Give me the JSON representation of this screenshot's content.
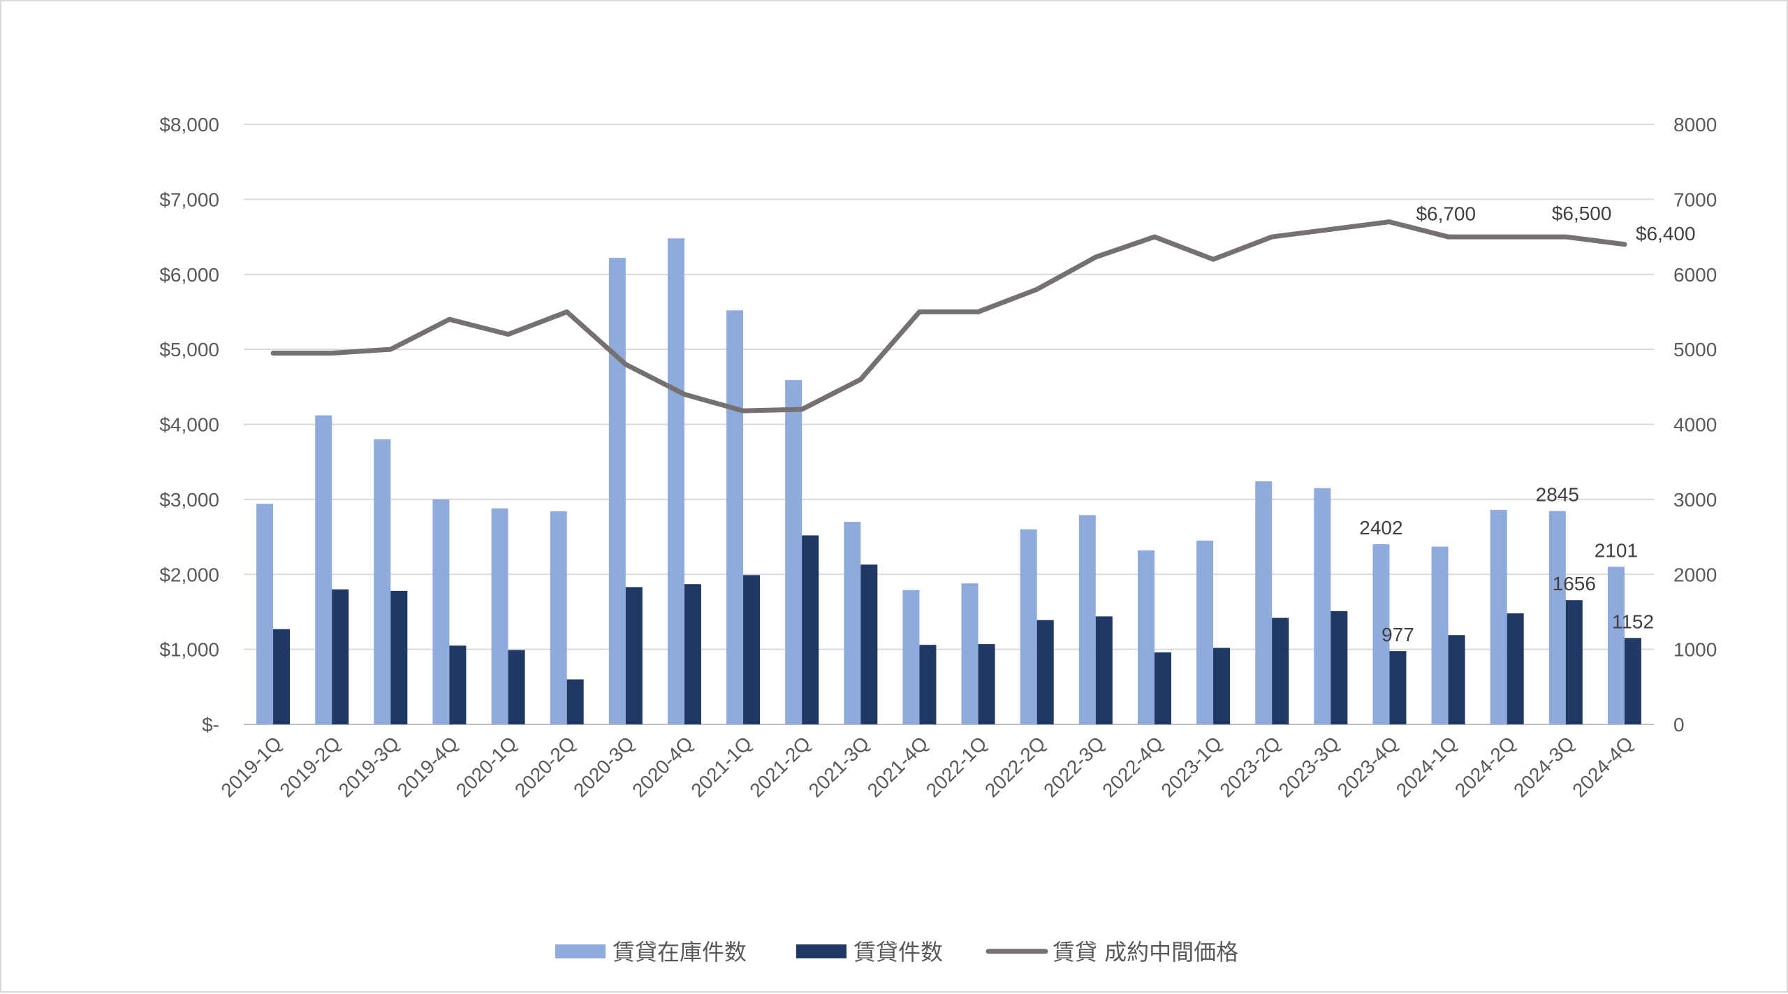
{
  "chart_data": {
    "type": "bar",
    "categories": [
      "2019-1Q",
      "2019-2Q",
      "2019-3Q",
      "2019-4Q",
      "2020-1Q",
      "2020-2Q",
      "2020-3Q",
      "2020-4Q",
      "2021-1Q",
      "2021-2Q",
      "2021-3Q",
      "2021-4Q",
      "2022-1Q",
      "2022-2Q",
      "2022-3Q",
      "2022-4Q",
      "2023-1Q",
      "2023-2Q",
      "2023-3Q",
      "2023-4Q",
      "2024-1Q",
      "2024-2Q",
      "2024-3Q",
      "2024-4Q"
    ],
    "series": [
      {
        "name": "賃貸在庫件数",
        "kind": "bar",
        "axis": "right",
        "color": "#8faadc",
        "values": [
          2940,
          4120,
          3800,
          3000,
          2880,
          2840,
          6220,
          6480,
          5520,
          4590,
          2700,
          1790,
          1880,
          2600,
          2790,
          2320,
          2450,
          3240,
          3150,
          2402,
          2370,
          2860,
          2845,
          2101
        ],
        "labels": {
          "19": "2402",
          "22": "2845",
          "23": "2101"
        }
      },
      {
        "name": "賃貸件数",
        "kind": "bar",
        "axis": "right",
        "color": "#203864",
        "values": [
          1270,
          1800,
          1780,
          1050,
          990,
          600,
          1830,
          1870,
          1990,
          2520,
          2130,
          1060,
          1070,
          1390,
          1440,
          960,
          1020,
          1420,
          1510,
          977,
          1190,
          1480,
          1656,
          1152
        ],
        "labels": {
          "19": "977",
          "22": "1656",
          "23": "1152"
        }
      },
      {
        "name": "賃貸 成約中間価格",
        "kind": "line",
        "axis": "left",
        "color": "#767171",
        "values": [
          4950,
          4950,
          5000,
          5400,
          5200,
          5500,
          4800,
          4400,
          4180,
          4200,
          4600,
          5500,
          5500,
          5800,
          6230,
          6500,
          6200,
          6500,
          6600,
          6700,
          6500,
          6500,
          6500,
          6400
        ],
        "labels": {
          "19": "$6,700",
          "22": "$6,500",
          "23": "$6,400"
        }
      }
    ],
    "left_axis": {
      "ylim": [
        0,
        8000
      ],
      "ticks": [
        "$-",
        "$1,000",
        "$2,000",
        "$3,000",
        "$4,000",
        "$5,000",
        "$6,000",
        "$7,000",
        "$8,000"
      ]
    },
    "right_axis": {
      "ylim": [
        0,
        8000
      ],
      "ticks": [
        "0",
        "1000",
        "2000",
        "3000",
        "4000",
        "5000",
        "6000",
        "7000",
        "8000"
      ]
    },
    "grid": true,
    "legend_position": "bottom"
  }
}
